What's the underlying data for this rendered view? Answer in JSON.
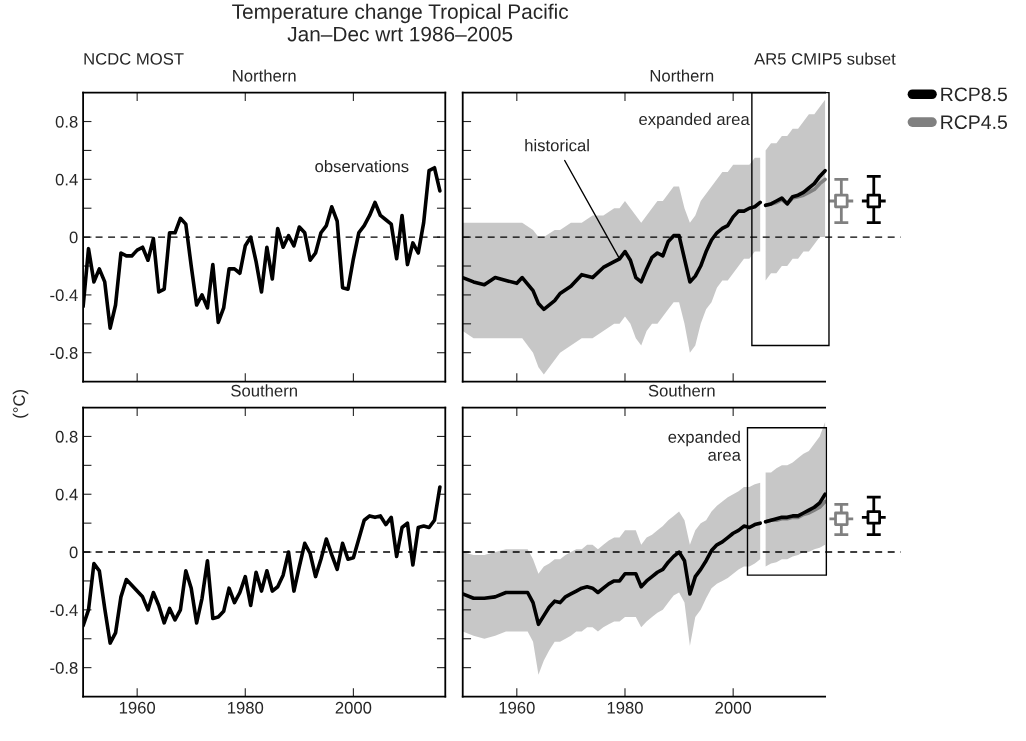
{
  "chart_data": [
    {
      "type": "line",
      "title": "Northern",
      "ylabel": "(°C)",
      "xlim": [
        1950,
        2017
      ],
      "ylim": [
        -1.0,
        1.0
      ],
      "xticks": [
        1960,
        1980,
        2000
      ],
      "yticks": [
        -0.8,
        {
          "value": -0.6,
          "label": null
        },
        -0.4,
        {
          "value": -0.2,
          "label": null
        },
        0,
        {
          "value": 0.2,
          "label": null
        },
        0.4,
        {
          "value": 0.6,
          "label": null
        },
        0.8
      ],
      "tick_labels": "y",
      "grid": false,
      "legend": false,
      "annotations": [
        "Temperature change Tropical Pacific\nJan–Dec wrt 1986–2005",
        "NCDC MOST",
        "observations"
      ],
      "ref_lines": [
        {
          "axis": "y",
          "value": 0,
          "line_style": "dashed",
          "color": "#000000"
        }
      ],
      "series": [
        {
          "color": "#000000",
          "x": [
            1950,
            1951,
            1952,
            1953,
            1954,
            1955,
            1956,
            1957,
            1958,
            1959,
            1960,
            1961,
            1962,
            1963,
            1964,
            1965,
            1966,
            1967,
            1968,
            1969,
            1970,
            1971,
            1972,
            1973,
            1974,
            1975,
            1976,
            1977,
            1978,
            1979,
            1980,
            1981,
            1982,
            1983,
            1984,
            1985,
            1986,
            1987,
            1988,
            1989,
            1990,
            1991,
            1992,
            1993,
            1994,
            1995,
            1996,
            1997,
            1998,
            1999,
            2000,
            2001,
            2002,
            2003,
            2004,
            2005,
            2006,
            2007,
            2008,
            2009,
            2010,
            2011,
            2012,
            2013,
            2014,
            2015,
            2016
          ],
          "values": [
            -0.48,
            -0.08,
            -0.31,
            -0.22,
            -0.31,
            -0.63,
            -0.47,
            -0.11,
            -0.13,
            -0.13,
            -0.09,
            -0.07,
            -0.16,
            -0.01,
            -0.38,
            -0.36,
            0.03,
            0.03,
            0.13,
            0.09,
            -0.2,
            -0.47,
            -0.4,
            -0.49,
            -0.19,
            -0.59,
            -0.49,
            -0.22,
            -0.22,
            -0.25,
            -0.06,
            0.0,
            -0.17,
            -0.38,
            -0.07,
            -0.29,
            0.06,
            -0.07,
            0.01,
            -0.06,
            0.07,
            0.03,
            -0.16,
            -0.11,
            0.03,
            0.08,
            0.21,
            0.11,
            -0.35,
            -0.36,
            -0.15,
            0.03,
            0.08,
            0.15,
            0.24,
            0.15,
            0.12,
            0.09,
            -0.15,
            0.15,
            -0.19,
            -0.04,
            -0.11,
            0.1,
            0.46,
            0.48,
            0.32
          ]
        }
      ]
    },
    {
      "type": "line",
      "title": "Northern",
      "xlim": [
        1950,
        2031
      ],
      "ylim": [
        -1.0,
        1.0
      ],
      "xticks": [
        1960,
        1980,
        2000
      ],
      "yticks": [
        -0.8,
        {
          "value": -0.6,
          "label": null
        },
        -0.4,
        {
          "value": -0.2,
          "label": null
        },
        0,
        {
          "value": 0.2,
          "label": null
        },
        0.4,
        {
          "value": 0.6,
          "label": null
        },
        0.8
      ],
      "tick_labels": false,
      "grid": false,
      "legend": "top right",
      "annotations": [
        "AR5 CMIP5 subset",
        {
          "text": "historical",
          "x": 1979,
          "y": -0.15
        },
        "expanded area"
      ],
      "ref_lines": [
        {
          "axis": "y",
          "value": 0,
          "line_style": "dashed",
          "color": "#000000"
        }
      ],
      "series": [
        {
          "color": "#000000",
          "x": [
            1950,
            1952,
            1954,
            1956,
            1958,
            1960,
            1961,
            1963,
            1964,
            1965,
            1967,
            1968,
            1970,
            1972,
            1974,
            1976,
            1978,
            1979,
            1980,
            1981,
            1982,
            1983,
            1984,
            1985,
            1986,
            1987,
            1988,
            1989,
            1990,
            1991,
            1992,
            1993,
            1994,
            1995,
            1996,
            1997,
            1998,
            1999,
            2000,
            2001,
            2002,
            2003,
            2004,
            2005
          ],
          "values": [
            -0.28,
            -0.31,
            -0.33,
            -0.28,
            -0.3,
            -0.32,
            -0.28,
            -0.37,
            -0.46,
            -0.5,
            -0.44,
            -0.39,
            -0.34,
            -0.26,
            -0.28,
            -0.21,
            -0.17,
            -0.15,
            -0.1,
            -0.16,
            -0.28,
            -0.31,
            -0.22,
            -0.14,
            -0.11,
            -0.13,
            -0.03,
            0.01,
            0.01,
            -0.15,
            -0.31,
            -0.27,
            -0.2,
            -0.1,
            -0.02,
            0.03,
            0.06,
            0.08,
            0.14,
            0.18,
            0.18,
            0.2,
            0.21,
            0.24
          ],
          "lower": [
            -0.65,
            -0.7,
            -0.7,
            -0.7,
            -0.7,
            -0.7,
            -0.7,
            -0.8,
            -0.9,
            -0.95,
            -0.85,
            -0.8,
            -0.75,
            -0.7,
            -0.7,
            -0.65,
            -0.6,
            -0.6,
            -0.55,
            -0.6,
            -0.7,
            -0.75,
            -0.65,
            -0.6,
            -0.6,
            -0.55,
            -0.5,
            -0.45,
            -0.45,
            -0.6,
            -0.8,
            -0.75,
            -0.6,
            -0.5,
            -0.45,
            -0.35,
            -0.3,
            -0.3,
            -0.25,
            -0.2,
            -0.15,
            -0.15,
            -0.1,
            -0.1
          ],
          "upper": [
            0.1,
            0.1,
            0.1,
            0.1,
            0.1,
            0.1,
            0.1,
            0.05,
            0.0,
            0.0,
            0.05,
            0.05,
            0.1,
            0.1,
            0.15,
            0.15,
            0.2,
            0.2,
            0.25,
            0.2,
            0.15,
            0.1,
            0.15,
            0.2,
            0.25,
            0.25,
            0.3,
            0.35,
            0.35,
            0.2,
            0.1,
            0.15,
            0.25,
            0.3,
            0.35,
            0.4,
            0.45,
            0.45,
            0.5,
            0.5,
            0.5,
            0.5,
            0.55,
            0.55
          ]
        },
        {
          "name": "RCP4.5",
          "color": "#808080",
          "x": [
            2006,
            2007,
            2008,
            2009,
            2010,
            2011,
            2012,
            2013,
            2014,
            2015,
            2016,
            2017
          ],
          "values": [
            0.22,
            0.23,
            0.24,
            0.26,
            0.23,
            0.27,
            0.28,
            0.29,
            0.31,
            0.33,
            0.37,
            0.4
          ]
        },
        {
          "name": "RCP8.5",
          "color": "#000000",
          "x": [
            2006,
            2007,
            2008,
            2009,
            2010,
            2011,
            2012,
            2013,
            2014,
            2015,
            2016,
            2017
          ],
          "values": [
            0.22,
            0.23,
            0.25,
            0.27,
            0.23,
            0.28,
            0.29,
            0.31,
            0.34,
            0.37,
            0.42,
            0.46
          ],
          "lower": [
            -0.3,
            -0.25,
            -0.25,
            -0.2,
            -0.2,
            -0.15,
            -0.15,
            -0.1,
            -0.1,
            -0.05,
            0.0,
            0.0
          ],
          "upper": [
            0.6,
            0.65,
            0.65,
            0.7,
            0.7,
            0.75,
            0.75,
            0.8,
            0.85,
            0.85,
            0.9,
            0.95
          ]
        },
        {
          "type": "scatter",
          "marker": "square",
          "colors": [
            "#808080",
            "#000000"
          ],
          "x": [
            2020,
            2026
          ],
          "values": [
            0.25,
            0.25
          ],
          "errors": [
            [
              0.1,
              0.4
            ],
            [
              0.1,
              0.42
            ]
          ],
          "xerrors": [
            2.2,
            2.2
          ]
        }
      ]
    },
    {
      "type": "line",
      "title": "Southern",
      "xlim": [
        1950,
        2017
      ],
      "ylim": [
        -1.0,
        1.0
      ],
      "xticks": [
        1960,
        1980,
        2000
      ],
      "yticks": [
        -0.8,
        {
          "value": -0.6,
          "label": null
        },
        -0.4,
        {
          "value": -0.2,
          "label": null
        },
        0,
        {
          "value": 0.2,
          "label": null
        },
        0.4,
        {
          "value": 0.6,
          "label": null
        },
        0.8
      ],
      "grid": false,
      "legend": false,
      "ref_lines": [
        {
          "axis": "y",
          "value": 0,
          "line_style": "dashed",
          "color": "#000000"
        }
      ],
      "series": [
        {
          "color": "#000000",
          "x": [
            1950,
            1951,
            1952,
            1953,
            1954,
            1955,
            1956,
            1957,
            1958,
            1959,
            1960,
            1961,
            1962,
            1963,
            1964,
            1965,
            1966,
            1967,
            1968,
            1969,
            1970,
            1971,
            1972,
            1973,
            1974,
            1975,
            1976,
            1977,
            1978,
            1979,
            1980,
            1981,
            1982,
            1983,
            1984,
            1985,
            1986,
            1987,
            1988,
            1989,
            1990,
            1991,
            1992,
            1993,
            1994,
            1995,
            1996,
            1997,
            1998,
            1999,
            2000,
            2001,
            2002,
            2003,
            2004,
            2005,
            2006,
            2007,
            2008,
            2009,
            2010,
            2011,
            2012,
            2013,
            2014,
            2015,
            2016
          ],
          "values": [
            -0.51,
            -0.4,
            -0.08,
            -0.13,
            -0.39,
            -0.63,
            -0.56,
            -0.31,
            -0.19,
            -0.23,
            -0.27,
            -0.31,
            -0.4,
            -0.28,
            -0.37,
            -0.49,
            -0.39,
            -0.47,
            -0.4,
            -0.13,
            -0.25,
            -0.49,
            -0.32,
            -0.06,
            -0.46,
            -0.45,
            -0.41,
            -0.25,
            -0.35,
            -0.28,
            -0.17,
            -0.37,
            -0.14,
            -0.27,
            -0.13,
            -0.27,
            -0.24,
            -0.16,
            0.0,
            -0.27,
            -0.1,
            0.06,
            -0.01,
            -0.17,
            -0.05,
            0.09,
            -0.02,
            -0.12,
            0.06,
            -0.05,
            -0.04,
            0.09,
            0.22,
            0.25,
            0.24,
            0.25,
            0.19,
            0.24,
            -0.03,
            0.17,
            0.2,
            -0.09,
            0.17,
            0.18,
            0.17,
            0.22,
            0.45
          ]
        }
      ]
    },
    {
      "type": "line",
      "title": "Southern",
      "xlim": [
        1950,
        2031
      ],
      "ylim": [
        -1.0,
        1.0
      ],
      "xticks": [
        1960,
        1980,
        2000
      ],
      "yticks": [
        -0.8,
        {
          "value": -0.6,
          "label": null
        },
        -0.4,
        {
          "value": -0.2,
          "label": null
        },
        0,
        {
          "value": 0.2,
          "label": null
        },
        0.4,
        {
          "value": 0.6,
          "label": null
        },
        0.8
      ],
      "tick_labels": "x",
      "grid": false,
      "legend": false,
      "ref_lines": [
        {
          "axis": "y",
          "value": 0,
          "line_style": "dashed",
          "color": "#000000"
        }
      ],
      "annotations": [
        "expanded\narea"
      ],
      "series": [
        {
          "color": "#000000",
          "x": [
            1950,
            1952,
            1954,
            1956,
            1958,
            1960,
            1962,
            1963,
            1964,
            1965,
            1966,
            1967,
            1968,
            1969,
            1970,
            1971,
            1972,
            1973,
            1974,
            1975,
            1976,
            1977,
            1978,
            1979,
            1980,
            1981,
            1982,
            1983,
            1984,
            1985,
            1986,
            1987,
            1988,
            1989,
            1990,
            1991,
            1992,
            1993,
            1994,
            1995,
            1996,
            1997,
            1998,
            1999,
            2000,
            2001,
            2002,
            2003,
            2004,
            2005
          ],
          "values": [
            -0.29,
            -0.32,
            -0.32,
            -0.31,
            -0.28,
            -0.28,
            -0.28,
            -0.35,
            -0.5,
            -0.44,
            -0.38,
            -0.34,
            -0.35,
            -0.31,
            -0.29,
            -0.27,
            -0.25,
            -0.24,
            -0.25,
            -0.28,
            -0.25,
            -0.22,
            -0.2,
            -0.2,
            -0.15,
            -0.15,
            -0.15,
            -0.24,
            -0.2,
            -0.17,
            -0.14,
            -0.12,
            -0.07,
            -0.03,
            0.0,
            -0.06,
            -0.29,
            -0.17,
            -0.12,
            -0.06,
            0.01,
            0.05,
            0.07,
            0.1,
            0.13,
            0.15,
            0.18,
            0.17,
            0.19,
            0.2
          ],
          "lower": [
            -0.55,
            -0.58,
            -0.6,
            -0.58,
            -0.55,
            -0.55,
            -0.55,
            -0.62,
            -0.85,
            -0.75,
            -0.68,
            -0.62,
            -0.62,
            -0.6,
            -0.58,
            -0.55,
            -0.55,
            -0.52,
            -0.52,
            -0.55,
            -0.52,
            -0.5,
            -0.48,
            -0.48,
            -0.45,
            -0.45,
            -0.45,
            -0.52,
            -0.48,
            -0.45,
            -0.42,
            -0.4,
            -0.35,
            -0.3,
            -0.28,
            -0.35,
            -0.65,
            -0.45,
            -0.4,
            -0.32,
            -0.25,
            -0.22,
            -0.2,
            -0.18,
            -0.15,
            -0.12,
            -0.1,
            -0.1,
            -0.08,
            -0.05
          ],
          "upper": [
            0.0,
            -0.02,
            -0.02,
            0.0,
            0.02,
            0.02,
            0.02,
            -0.05,
            -0.15,
            -0.1,
            -0.08,
            -0.05,
            -0.05,
            -0.02,
            0.0,
            0.02,
            0.02,
            0.05,
            0.05,
            0.02,
            0.05,
            0.08,
            0.1,
            0.1,
            0.15,
            0.15,
            0.15,
            0.05,
            0.1,
            0.12,
            0.15,
            0.18,
            0.22,
            0.25,
            0.28,
            0.22,
            0.05,
            0.15,
            0.2,
            0.22,
            0.28,
            0.32,
            0.35,
            0.38,
            0.4,
            0.42,
            0.45,
            0.45,
            0.47,
            0.48
          ]
        },
        {
          "color": "#808080",
          "x": [
            2006,
            2007,
            2008,
            2009,
            2010,
            2011,
            2012,
            2013,
            2014,
            2015,
            2016,
            2017
          ],
          "values": [
            0.21,
            0.22,
            0.22,
            0.23,
            0.23,
            0.24,
            0.24,
            0.26,
            0.27,
            0.29,
            0.31,
            0.35
          ]
        },
        {
          "color": "#000000",
          "x": [
            2006,
            2007,
            2008,
            2009,
            2010,
            2011,
            2012,
            2013,
            2014,
            2015,
            2016,
            2017
          ],
          "values": [
            0.21,
            0.22,
            0.23,
            0.24,
            0.24,
            0.25,
            0.25,
            0.27,
            0.29,
            0.31,
            0.34,
            0.4
          ],
          "lower": [
            -0.1,
            -0.08,
            -0.07,
            -0.05,
            -0.05,
            -0.03,
            -0.02,
            0.0,
            0.0,
            0.02,
            0.03,
            0.05
          ],
          "upper": [
            0.55,
            0.55,
            0.58,
            0.6,
            0.6,
            0.62,
            0.65,
            0.68,
            0.7,
            0.75,
            0.8,
            0.9
          ]
        },
        {
          "type": "scatter",
          "marker": "square",
          "colors": [
            "#808080",
            "#000000"
          ],
          "x": [
            2020,
            2026
          ],
          "values": [
            0.23,
            0.24
          ],
          "errors": [
            [
              0.12,
              0.33
            ],
            [
              0.12,
              0.38
            ]
          ],
          "xerrors": [
            2.2,
            2.2
          ]
        }
      ]
    }
  ]
}
